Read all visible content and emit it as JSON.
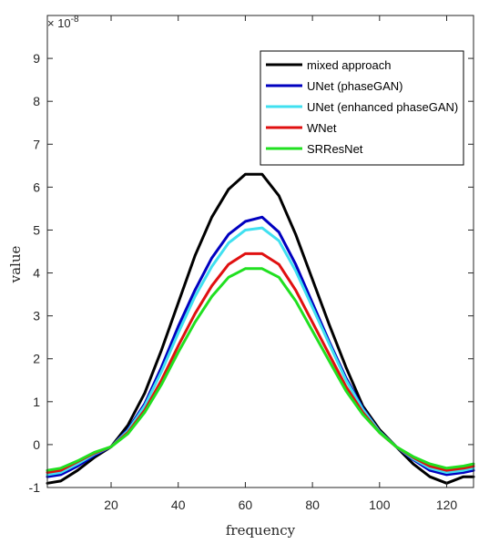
{
  "chart_data": {
    "type": "line",
    "title": "",
    "xlabel": "frequency",
    "ylabel": "value",
    "y_exponent_label": "× 10",
    "y_exponent_power": "-8",
    "xlim": [
      1,
      128
    ],
    "ylim": [
      -1,
      10
    ],
    "xticks": [
      20,
      40,
      60,
      80,
      100,
      120
    ],
    "yticks": [
      -1,
      0,
      1,
      2,
      3,
      4,
      5,
      6,
      7,
      8,
      9
    ],
    "grid": false,
    "legend_position": "top-right",
    "x": [
      1,
      5,
      10,
      15,
      20,
      25,
      30,
      35,
      40,
      45,
      50,
      55,
      60,
      65,
      70,
      75,
      80,
      85,
      90,
      95,
      100,
      105,
      110,
      115,
      120,
      125,
      128
    ],
    "series": [
      {
        "name": "mixed approach",
        "color": "#000000",
        "values": [
          -0.9,
          -0.85,
          -0.6,
          -0.3,
          -0.05,
          0.45,
          1.2,
          2.2,
          3.3,
          4.4,
          5.3,
          5.95,
          6.3,
          6.3,
          5.8,
          4.9,
          3.85,
          2.8,
          1.8,
          0.9,
          0.35,
          -0.05,
          -0.45,
          -0.75,
          -0.9,
          -0.75,
          -0.75
        ]
      },
      {
        "name": "UNet (phaseGAN)",
        "color": "#0000c0",
        "values": [
          -0.75,
          -0.7,
          -0.5,
          -0.25,
          -0.05,
          0.35,
          0.95,
          1.8,
          2.75,
          3.6,
          4.35,
          4.9,
          5.2,
          5.3,
          4.95,
          4.2,
          3.3,
          2.4,
          1.55,
          0.85,
          0.3,
          -0.05,
          -0.35,
          -0.6,
          -0.7,
          -0.65,
          -0.6
        ]
      },
      {
        "name": "UNet (enhanced phaseGAN)",
        "color": "#40e0f0",
        "values": [
          -0.7,
          -0.65,
          -0.45,
          -0.22,
          -0.05,
          0.32,
          0.9,
          1.7,
          2.6,
          3.45,
          4.15,
          4.7,
          5.0,
          5.05,
          4.75,
          4.05,
          3.2,
          2.35,
          1.5,
          0.82,
          0.3,
          -0.05,
          -0.33,
          -0.55,
          -0.65,
          -0.6,
          -0.55
        ]
      },
      {
        "name": "WNet",
        "color": "#e01010",
        "values": [
          -0.65,
          -0.6,
          -0.4,
          -0.2,
          -0.05,
          0.28,
          0.8,
          1.5,
          2.3,
          3.05,
          3.7,
          4.2,
          4.45,
          4.45,
          4.2,
          3.6,
          2.85,
          2.1,
          1.35,
          0.75,
          0.28,
          -0.05,
          -0.3,
          -0.5,
          -0.6,
          -0.55,
          -0.5
        ]
      },
      {
        "name": "SRResNet",
        "color": "#20e020",
        "values": [
          -0.6,
          -0.55,
          -0.38,
          -0.18,
          -0.05,
          0.25,
          0.75,
          1.4,
          2.15,
          2.85,
          3.45,
          3.9,
          4.1,
          4.1,
          3.9,
          3.35,
          2.65,
          1.95,
          1.25,
          0.7,
          0.28,
          -0.05,
          -0.28,
          -0.45,
          -0.55,
          -0.5,
          -0.45
        ]
      }
    ]
  }
}
